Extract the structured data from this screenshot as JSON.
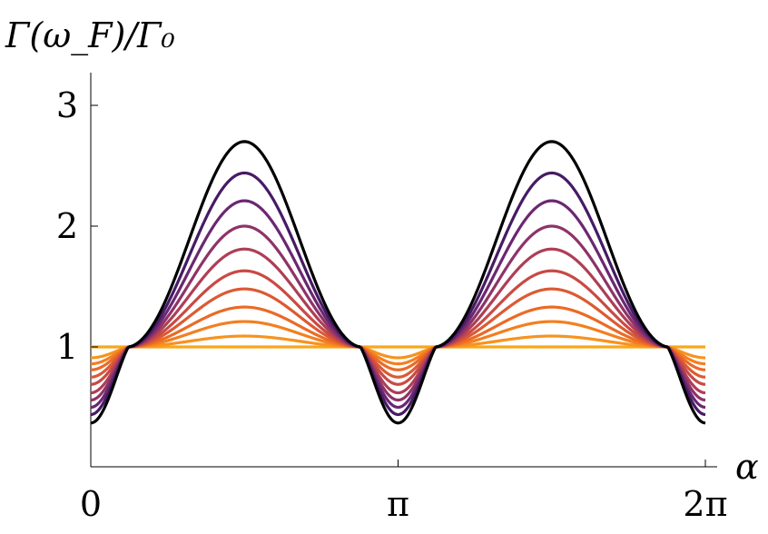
{
  "chart_data": {
    "type": "line",
    "ylabel": "Γ(ω_F)/Γ₀",
    "xlabel": "α",
    "xlim": [
      0,
      6.283185307179586
    ],
    "ylim": [
      0,
      3.25
    ],
    "x_ticks": [
      {
        "value": 0,
        "label": "0"
      },
      {
        "value": 3.141592653589793,
        "label": "π"
      },
      {
        "value": 6.283185307179586,
        "label": "2π"
      }
    ],
    "y_ticks": [
      {
        "value": 1,
        "label": "1"
      },
      {
        "value": 2,
        "label": "2"
      },
      {
        "value": 3,
        "label": "3"
      }
    ],
    "grid": false,
    "legend": "none",
    "curve_form": "y = 1 + A·(−cos 2α + 2·cos 2α·|cos 2α|) ; peaks at π/2 and 3π/2, minima at 0, π, 2π, crossings at y=1",
    "series": [
      {
        "amplitude": 0.0,
        "peak": 1.0,
        "min": 1.0,
        "color": "#F9A61A"
      },
      {
        "amplitude": 0.085,
        "peak": 1.09,
        "min": 0.91,
        "color": "#F7931E"
      },
      {
        "amplitude": 0.2,
        "peak": 1.21,
        "min": 0.86,
        "color": "#F37F20"
      },
      {
        "amplitude": 0.33,
        "peak": 1.33,
        "min": 0.81,
        "color": "#EB6A26"
      },
      {
        "amplitude": 0.47,
        "peak": 1.48,
        "min": 0.75,
        "color": "#DC5A33"
      },
      {
        "amplitude": 0.62,
        "peak": 1.63,
        "min": 0.69,
        "color": "#C84A45"
      },
      {
        "amplitude": 0.79,
        "peak": 1.81,
        "min": 0.62,
        "color": "#AE3E57"
      },
      {
        "amplitude": 0.97,
        "peak": 2.0,
        "min": 0.56,
        "color": "#8E3367"
      },
      {
        "amplitude": 1.18,
        "peak": 2.21,
        "min": 0.5,
        "color": "#6B2772"
      },
      {
        "amplitude": 1.41,
        "peak": 2.44,
        "min": 0.44,
        "color": "#461B65"
      },
      {
        "amplitude": 1.66,
        "peak": 2.7,
        "min": 0.37,
        "color": "#000000"
      }
    ]
  }
}
